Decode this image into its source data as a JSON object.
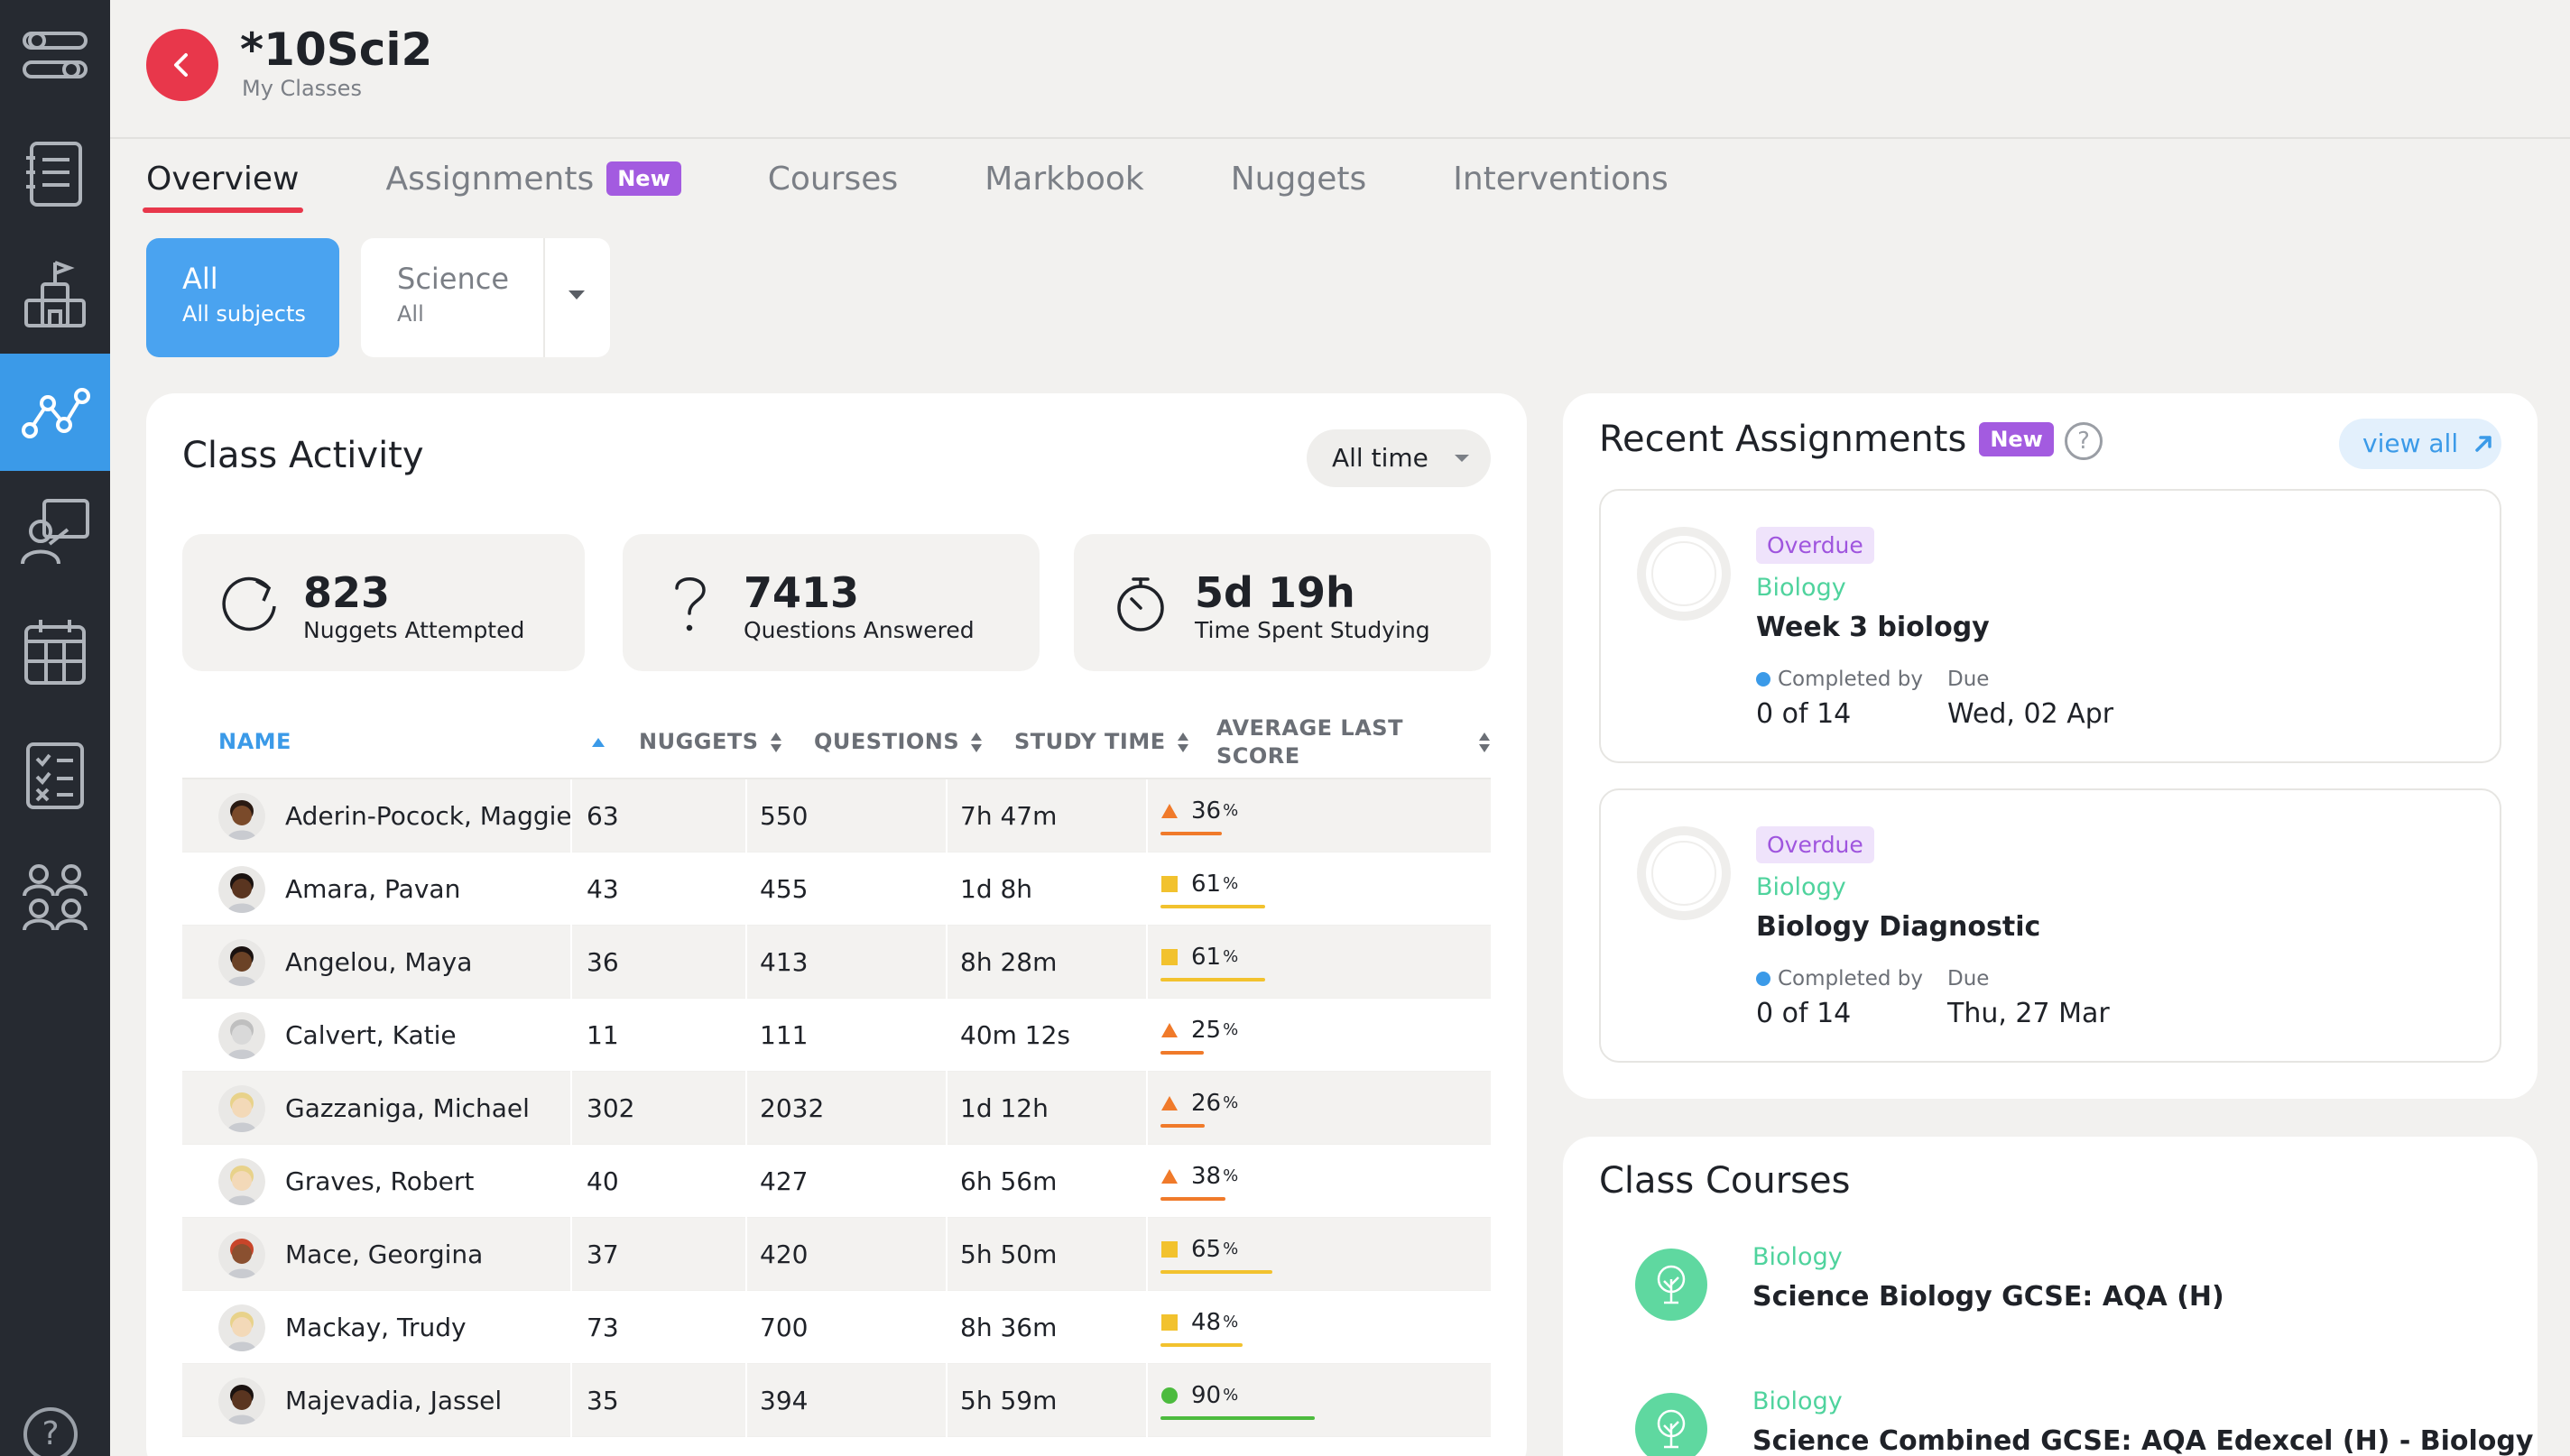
{
  "header": {
    "title": "*10Sci2",
    "breadcrumb": "My Classes"
  },
  "tabs": [
    {
      "label": "Overview",
      "active": true
    },
    {
      "label": "Assignments",
      "badge": "New"
    },
    {
      "label": "Courses"
    },
    {
      "label": "Markbook"
    },
    {
      "label": "Nuggets"
    },
    {
      "label": "Interventions"
    }
  ],
  "filters": {
    "all": {
      "title": "All",
      "subtitle": "All subjects"
    },
    "subject": {
      "title": "Science",
      "subtitle": "All"
    }
  },
  "activity": {
    "title": "Class Activity",
    "time_filter": "All time",
    "stats": [
      {
        "icon": "refresh-icon",
        "value": "823",
        "label": "Nuggets Attempted"
      },
      {
        "icon": "question-icon",
        "value": "7413",
        "label": "Questions Answered"
      },
      {
        "icon": "stopwatch-icon",
        "value": "5d 19h",
        "label": "Time Spent Studying"
      }
    ],
    "columns": {
      "name": "NAME",
      "nuggets": "NUGGETS",
      "questions": "QUESTIONS",
      "study_time": "STUDY TIME",
      "score_line1": "AVERAGE LAST",
      "score_line2": "SCORE"
    },
    "rows": [
      {
        "name": "Aderin-Pocock, Maggie",
        "nuggets": "63",
        "questions": "550",
        "time": "7h 47m",
        "score": "36",
        "score_value": 36,
        "marker": "triangle",
        "color": "#f07a2a",
        "skin": "#7a4a2a",
        "hair": "#2a1a12"
      },
      {
        "name": "Amara, Pavan",
        "nuggets": "43",
        "questions": "455",
        "time": "1d 8h",
        "score": "61",
        "score_value": 61,
        "marker": "square",
        "color": "#f2c22e",
        "skin": "#5a3520",
        "hair": "#1a1210"
      },
      {
        "name": "Angelou, Maya",
        "nuggets": "36",
        "questions": "413",
        "time": "8h 28m",
        "score": "61",
        "score_value": 61,
        "marker": "square",
        "color": "#f2c22e",
        "skin": "#6b4226",
        "hair": "#1a1210"
      },
      {
        "name": "Calvert, Katie",
        "nuggets": "11",
        "questions": "111",
        "time": "40m 12s",
        "score": "25",
        "score_value": 25,
        "marker": "triangle",
        "color": "#f07a2a",
        "skin": "#d9d9d9",
        "hair": "#bfbfbf"
      },
      {
        "name": "Gazzaniga, Michael",
        "nuggets": "302",
        "questions": "2032",
        "time": "1d 12h",
        "score": "26",
        "score_value": 26,
        "marker": "triangle",
        "color": "#f07a2a",
        "skin": "#f3d9b8",
        "hair": "#e8d28a"
      },
      {
        "name": "Graves, Robert",
        "nuggets": "40",
        "questions": "427",
        "time": "6h 56m",
        "score": "38",
        "score_value": 38,
        "marker": "triangle",
        "color": "#f07a2a",
        "skin": "#f3d9b8",
        "hair": "#e8d28a"
      },
      {
        "name": "Mace, Georgina",
        "nuggets": "37",
        "questions": "420",
        "time": "5h 50m",
        "score": "65",
        "score_value": 65,
        "marker": "square",
        "color": "#f2c22e",
        "skin": "#8a5030",
        "hair": "#c8452a"
      },
      {
        "name": "Mackay, Trudy",
        "nuggets": "73",
        "questions": "700",
        "time": "8h 36m",
        "score": "48",
        "score_value": 48,
        "marker": "square",
        "color": "#f2c22e",
        "skin": "#f3d9b8",
        "hair": "#e8d28a"
      },
      {
        "name": "Majevadia, Jassel",
        "nuggets": "35",
        "questions": "394",
        "time": "5h 59m",
        "score": "90",
        "score_value": 90,
        "marker": "circle",
        "color": "#4cbb3e",
        "skin": "#5a3520",
        "hair": "#1a1210"
      }
    ]
  },
  "recent": {
    "title": "Recent Assignments",
    "badge": "New",
    "view_all": "view all",
    "items": [
      {
        "status": "Overdue",
        "subject": "Biology",
        "title": "Week 3 biology",
        "completed_label": "Completed by",
        "completed": "0 of 14",
        "due_label": "Due",
        "due": "Wed, 02 Apr"
      },
      {
        "status": "Overdue",
        "subject": "Biology",
        "title": "Biology Diagnostic",
        "completed_label": "Completed by",
        "completed": "0 of 14",
        "due_label": "Due",
        "due": "Thu, 27 Mar"
      }
    ]
  },
  "courses": {
    "title": "Class Courses",
    "items": [
      {
        "subject": "Biology",
        "title": "Science Biology GCSE: AQA (H)"
      },
      {
        "subject": "Biology",
        "title": "Science Combined GCSE: AQA Edexcel (H) - Biology"
      }
    ]
  },
  "colors": {
    "accent": "#3b9ae8",
    "brand_red": "#e8374b",
    "new_badge": "#a35be0",
    "sidebar": "#262a31",
    "subject_green": "#4fd39d"
  }
}
